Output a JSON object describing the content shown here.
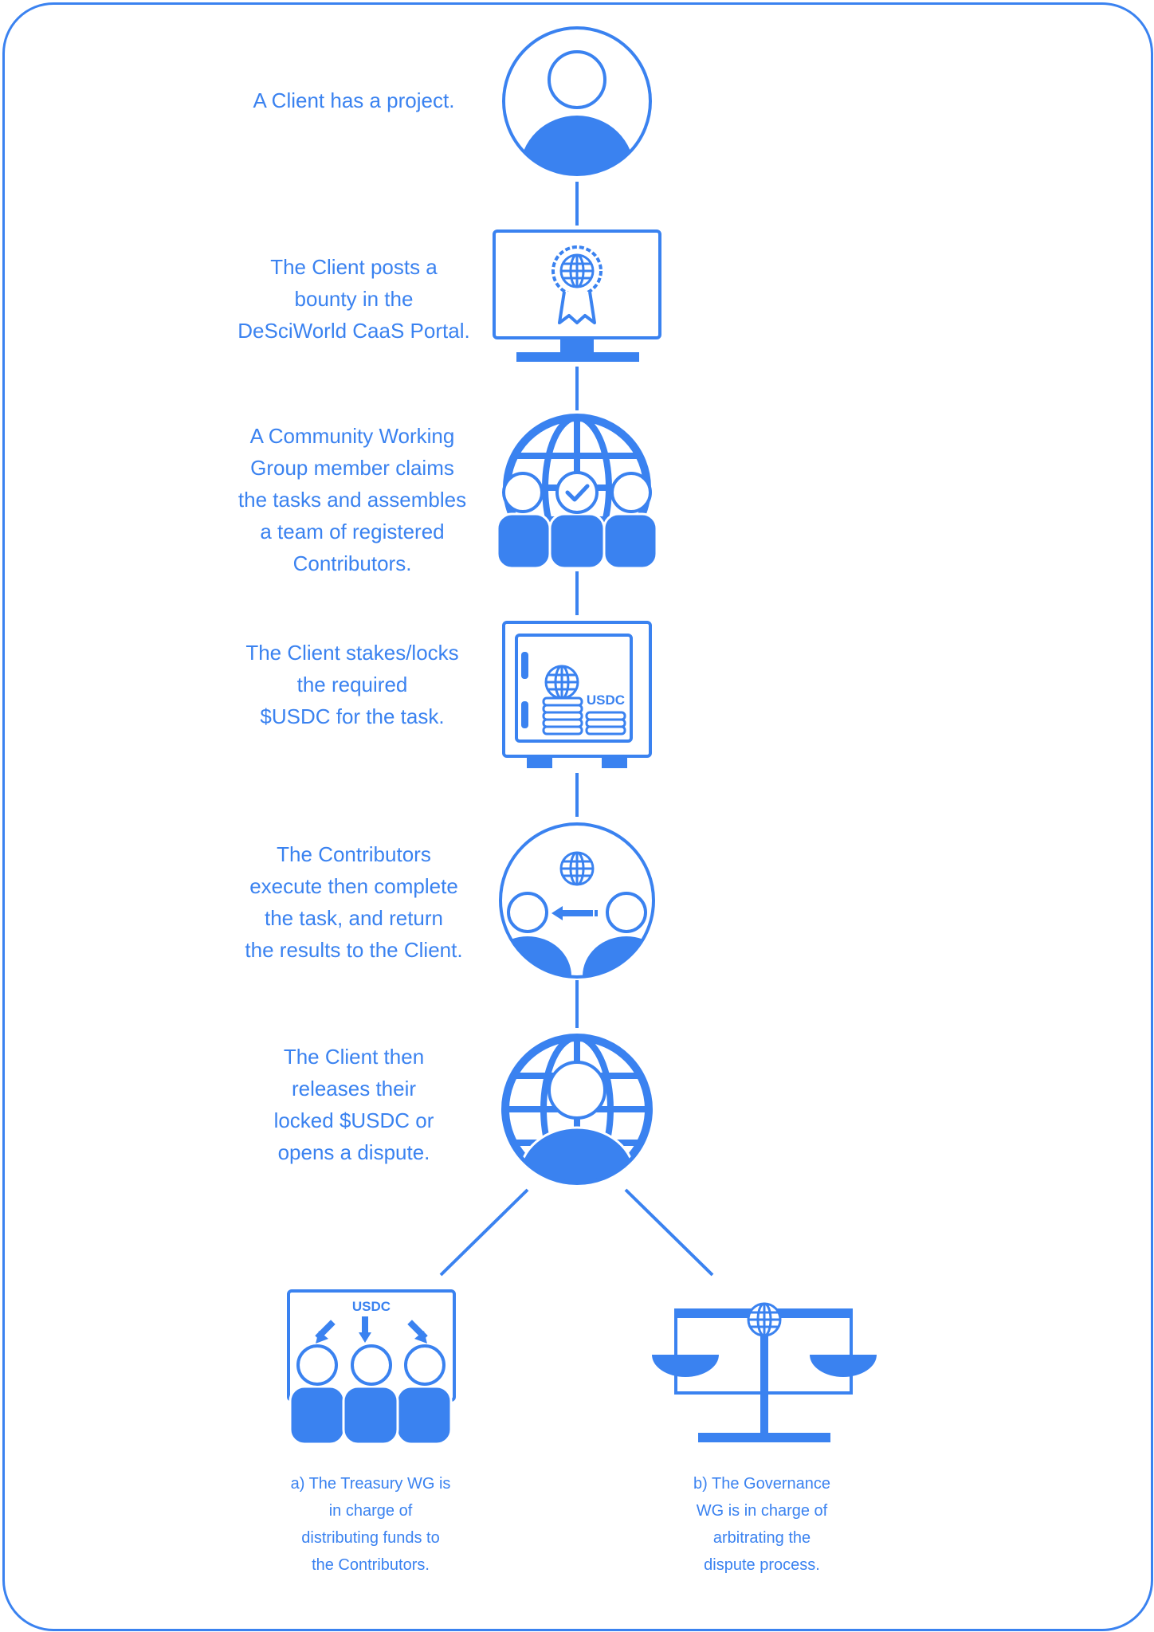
{
  "colors": {
    "primary": "#3a82f0",
    "background": "#ffffff"
  },
  "steps": [
    {
      "text": "A Client has a project.",
      "icon": "client-person-icon"
    },
    {
      "text": "The Client posts a\nbounty in the\nDeSciWorld CaaS Portal.",
      "icon": "monitor-award-icon"
    },
    {
      "text": "A Community Working\nGroup member claims\nthe tasks and assembles\na team of registered\nContributors.",
      "icon": "globe-team-icon"
    },
    {
      "text": "The Client stakes/locks\nthe required\n$USDC for the task.",
      "icon": "safe-usdc-icon",
      "label": "USDC"
    },
    {
      "text": "The Contributors\nexecute then complete\nthe task, and return\nthe results to the Client.",
      "icon": "contributors-transfer-icon"
    },
    {
      "text": "The Client then\nreleases their\nlocked $USDC or\nopens a dispute.",
      "icon": "globe-person-icon"
    }
  ],
  "branches": [
    {
      "text": "a) The Treasury WG is\nin charge of\ndistributing funds to\nthe Contributors.",
      "icon": "usdc-distribution-icon",
      "label": "USDC"
    },
    {
      "text": "b) The Governance\nWG is in charge of\narbitrating the\ndispute process.",
      "icon": "scales-icon"
    }
  ]
}
